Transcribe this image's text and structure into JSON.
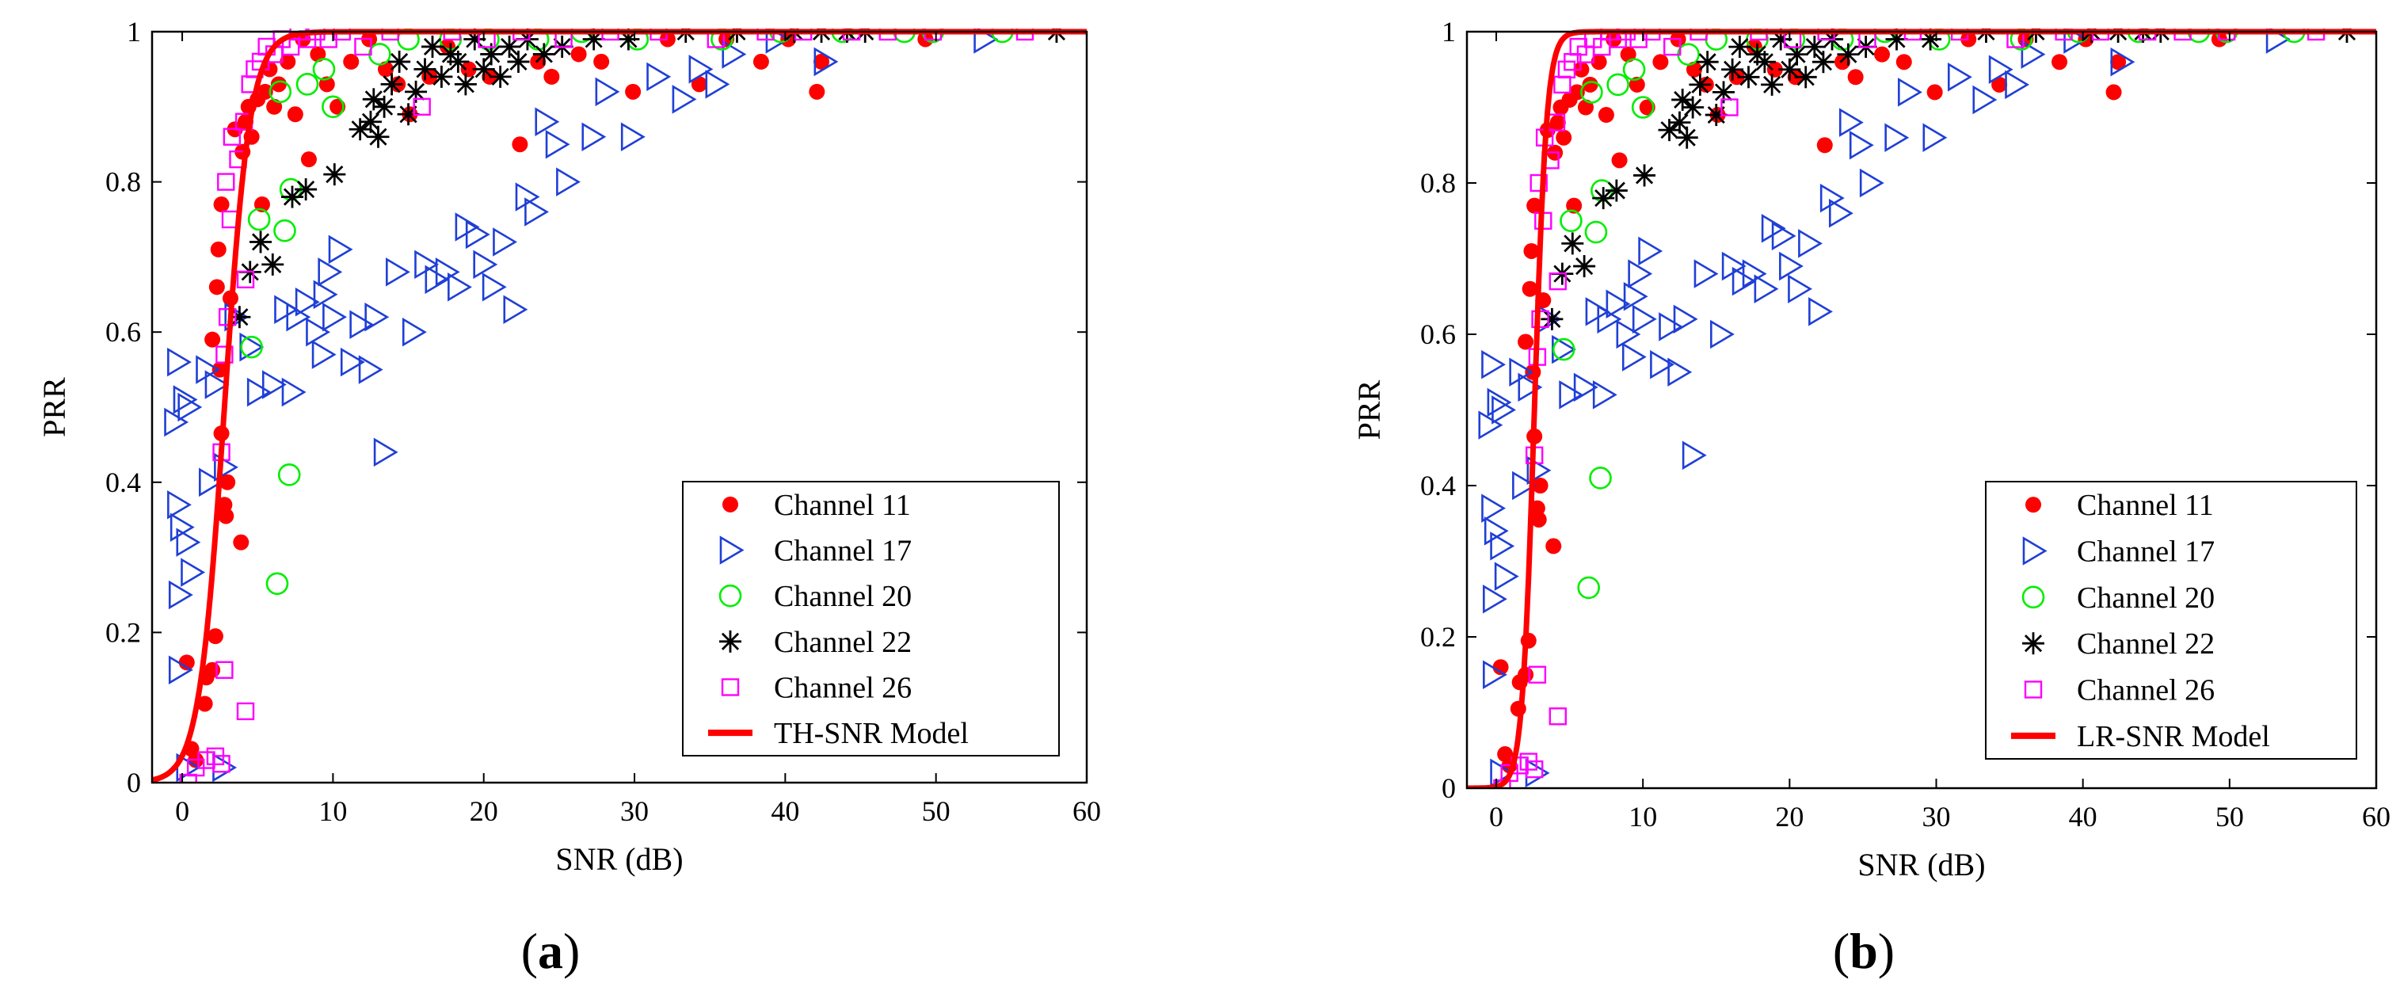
{
  "figure": {
    "panels": [
      {
        "open": "(",
        "letter": "a",
        "close": ")"
      },
      {
        "open": "(",
        "letter": "b",
        "close": ")"
      }
    ]
  },
  "chart_data": [
    {
      "type": "scatter",
      "panel": "a",
      "xlabel": "SNR (dB)",
      "ylabel": "PRR",
      "xlim": [
        -2,
        60
      ],
      "ylim": [
        0,
        1
      ],
      "xticks": [
        0,
        10,
        20,
        30,
        40,
        50,
        60
      ],
      "yticks": [
        0,
        0.2,
        0.4,
        0.6,
        0.8,
        1
      ],
      "ytick_labels": [
        "0",
        "0.2",
        "0.4",
        "0.6",
        "0.8",
        "1"
      ],
      "legend_position": "bottom-right",
      "legend": [
        "Channel 11",
        "Channel 17",
        "Channel 20",
        "Channel 22",
        "Channel 26",
        "TH-SNR Model"
      ],
      "model": {
        "name": "TH-SNR Model",
        "kind": "sigmoid",
        "center": 2.8,
        "scale": 0.85
      },
      "series": [
        {
          "name": "Channel 11",
          "marker": "dot",
          "color": "#ff0000",
          "points": [
            [
              0.3,
              0.16
            ],
            [
              0.6,
              0.045
            ],
            [
              0.9,
              0.03
            ],
            [
              1.5,
              0.105
            ],
            [
              1.6,
              0.14
            ],
            [
              2.0,
              0.15
            ],
            [
              2.2,
              0.195
            ],
            [
              2.0,
              0.59
            ],
            [
              2.3,
              0.66
            ],
            [
              2.4,
              0.71
            ],
            [
              2.6,
              0.77
            ],
            [
              2.5,
              0.55
            ],
            [
              2.6,
              0.465
            ],
            [
              2.8,
              0.37
            ],
            [
              2.9,
              0.355
            ],
            [
              3.0,
              0.4
            ],
            [
              3.2,
              0.645
            ],
            [
              3.5,
              0.87
            ],
            [
              3.9,
              0.32
            ],
            [
              4.0,
              0.84
            ],
            [
              4.2,
              0.88
            ],
            [
              4.4,
              0.9
            ],
            [
              4.6,
              0.86
            ],
            [
              5.0,
              0.91
            ],
            [
              5.3,
              0.77
            ],
            [
              5.5,
              0.92
            ],
            [
              5.8,
              0.95
            ],
            [
              6.1,
              0.9
            ],
            [
              6.4,
              0.93
            ],
            [
              7.0,
              0.96
            ],
            [
              7.5,
              0.89
            ],
            [
              8.0,
              0.99
            ],
            [
              8.4,
              0.83
            ],
            [
              9.0,
              0.97
            ],
            [
              9.6,
              0.93
            ],
            [
              10.3,
              0.9
            ],
            [
              11.2,
              0.96
            ],
            [
              12.4,
              0.99
            ],
            [
              13.5,
              0.95
            ],
            [
              14.3,
              0.93
            ],
            [
              15.1,
              0.89
            ],
            [
              16.4,
              0.94
            ],
            [
              17.6,
              0.98
            ],
            [
              19.0,
              0.95
            ],
            [
              20.4,
              0.94
            ],
            [
              22.4,
              0.85
            ],
            [
              23.6,
              0.96
            ],
            [
              24.5,
              0.94
            ],
            [
              26.3,
              0.97
            ],
            [
              27.8,
              0.96
            ],
            [
              29.9,
              0.92
            ],
            [
              32.2,
              0.99
            ],
            [
              34.3,
              0.93
            ],
            [
              36.1,
              0.99
            ],
            [
              38.4,
              0.96
            ],
            [
              40.2,
              0.99
            ],
            [
              42.1,
              0.92
            ],
            [
              42.4,
              0.96
            ],
            [
              49.3,
              0.99
            ]
          ]
        },
        {
          "name": "Channel 17",
          "marker": "triangle-right",
          "color": "#1f3fd6",
          "points": [
            [
              -0.3,
              0.56
            ],
            [
              -0.5,
              0.48
            ],
            [
              0.1,
              0.51
            ],
            [
              0.4,
              0.5
            ],
            [
              -0.2,
              0.25
            ],
            [
              0.3,
              0.32
            ],
            [
              -0.3,
              0.37
            ],
            [
              -0.1,
              0.34
            ],
            [
              0.6,
              0.28
            ],
            [
              -0.2,
              0.15
            ],
            [
              0.3,
              0.02
            ],
            [
              1.6,
              0.55
            ],
            [
              2.2,
              0.53
            ],
            [
              1.8,
              0.4
            ],
            [
              2.8,
              0.42
            ],
            [
              2.7,
              0.02
            ],
            [
              3.5,
              0.62
            ],
            [
              4.5,
              0.58
            ],
            [
              5.0,
              0.52
            ],
            [
              6.0,
              0.53
            ],
            [
              6.8,
              0.63
            ],
            [
              7.3,
              0.52
            ],
            [
              7.6,
              0.62
            ],
            [
              8.2,
              0.64
            ],
            [
              8.9,
              0.6
            ],
            [
              9.3,
              0.57
            ],
            [
              9.4,
              0.65
            ],
            [
              9.7,
              0.68
            ],
            [
              10.0,
              0.62
            ],
            [
              10.4,
              0.71
            ],
            [
              11.2,
              0.56
            ],
            [
              11.8,
              0.61
            ],
            [
              12.4,
              0.55
            ],
            [
              12.8,
              0.62
            ],
            [
              13.4,
              0.44
            ],
            [
              14.2,
              0.68
            ],
            [
              15.3,
              0.6
            ],
            [
              16.1,
              0.69
            ],
            [
              16.8,
              0.67
            ],
            [
              17.5,
              0.68
            ],
            [
              18.3,
              0.66
            ],
            [
              18.8,
              0.74
            ],
            [
              19.5,
              0.73
            ],
            [
              20.0,
              0.69
            ],
            [
              20.6,
              0.66
            ],
            [
              21.3,
              0.72
            ],
            [
              22.0,
              0.63
            ],
            [
              22.8,
              0.78
            ],
            [
              23.4,
              0.76
            ],
            [
              24.1,
              0.88
            ],
            [
              24.8,
              0.85
            ],
            [
              25.5,
              0.8
            ],
            [
              27.2,
              0.86
            ],
            [
              28.1,
              0.92
            ],
            [
              29.8,
              0.86
            ],
            [
              31.5,
              0.94
            ],
            [
              33.2,
              0.91
            ],
            [
              34.3,
              0.95
            ],
            [
              35.4,
              0.93
            ],
            [
              36.5,
              0.97
            ],
            [
              39.4,
              0.99
            ],
            [
              42.6,
              0.96
            ],
            [
              53.2,
              0.99
            ]
          ]
        },
        {
          "name": "Channel 20",
          "marker": "circle",
          "color": "#00ee00",
          "points": [
            [
              4.6,
              0.58
            ],
            [
              5.1,
              0.75
            ],
            [
              6.3,
              0.265
            ],
            [
              7.1,
              0.41
            ],
            [
              6.8,
              0.735
            ],
            [
              7.2,
              0.79
            ],
            [
              6.5,
              0.92
            ],
            [
              8.3,
              0.93
            ],
            [
              9.4,
              0.95
            ],
            [
              10.0,
              0.9
            ],
            [
              13.1,
              0.97
            ],
            [
              15.0,
              0.99
            ],
            [
              17.8,
              0.99
            ],
            [
              20.3,
              0.99
            ],
            [
              23.6,
              0.99
            ],
            [
              26.5,
              1.0
            ],
            [
              30.2,
              0.99
            ],
            [
              35.8,
              0.99
            ],
            [
              39.7,
              1.0
            ],
            [
              43.8,
              1.0
            ],
            [
              47.9,
              1.0
            ],
            [
              49.8,
              1.0
            ],
            [
              54.4,
              1.0
            ]
          ]
        },
        {
          "name": "Channel 22",
          "marker": "asterisk",
          "color": "#000000",
          "points": [
            [
              3.8,
              0.62
            ],
            [
              4.5,
              0.68
            ],
            [
              5.2,
              0.72
            ],
            [
              6.0,
              0.69
            ],
            [
              7.3,
              0.78
            ],
            [
              8.2,
              0.79
            ],
            [
              10.1,
              0.81
            ],
            [
              11.8,
              0.87
            ],
            [
              12.5,
              0.88
            ],
            [
              12.7,
              0.91
            ],
            [
              13.0,
              0.86
            ],
            [
              13.4,
              0.9
            ],
            [
              13.9,
              0.93
            ],
            [
              14.4,
              0.96
            ],
            [
              15.0,
              0.89
            ],
            [
              15.5,
              0.92
            ],
            [
              16.1,
              0.95
            ],
            [
              16.6,
              0.98
            ],
            [
              17.2,
              0.94
            ],
            [
              17.8,
              0.97
            ],
            [
              18.3,
              0.96
            ],
            [
              18.8,
              0.93
            ],
            [
              19.4,
              0.99
            ],
            [
              20.0,
              0.95
            ],
            [
              20.5,
              0.97
            ],
            [
              21.1,
              0.94
            ],
            [
              21.7,
              0.98
            ],
            [
              22.3,
              0.96
            ],
            [
              22.9,
              0.99
            ],
            [
              24.0,
              0.97
            ],
            [
              25.2,
              0.98
            ],
            [
              27.3,
              0.99
            ],
            [
              29.6,
              0.99
            ],
            [
              33.4,
              1.0
            ],
            [
              36.8,
              1.0
            ],
            [
              40.6,
              1.0
            ],
            [
              42.4,
              1.0
            ],
            [
              44.1,
              1.0
            ],
            [
              45.3,
              1.0
            ],
            [
              58.0,
              1.0
            ]
          ]
        },
        {
          "name": "Channel 26",
          "marker": "square",
          "color": "#ff00ff",
          "points": [
            [
              0.4,
              0.0
            ],
            [
              0.9,
              0.02
            ],
            [
              1.6,
              0.03
            ],
            [
              2.2,
              0.035
            ],
            [
              2.6,
              0.025
            ],
            [
              2.8,
              0.15
            ],
            [
              2.6,
              0.44
            ],
            [
              2.8,
              0.57
            ],
            [
              3.0,
              0.62
            ],
            [
              3.2,
              0.75
            ],
            [
              2.9,
              0.8
            ],
            [
              3.3,
              0.86
            ],
            [
              3.7,
              0.83
            ],
            [
              4.1,
              0.88
            ],
            [
              4.2,
              0.095
            ],
            [
              4.2,
              0.67
            ],
            [
              4.5,
              0.93
            ],
            [
              4.8,
              0.95
            ],
            [
              5.2,
              0.96
            ],
            [
              5.6,
              0.98
            ],
            [
              6.1,
              0.97
            ],
            [
              6.6,
              0.99
            ],
            [
              7.2,
              0.98
            ],
            [
              7.7,
              1.0
            ],
            [
              8.3,
              0.99
            ],
            [
              8.9,
              1.0
            ],
            [
              9.7,
              0.99
            ],
            [
              10.6,
              1.0
            ],
            [
              12.0,
              0.98
            ],
            [
              13.8,
              1.0
            ],
            [
              15.9,
              0.9
            ],
            [
              17.9,
              1.0
            ],
            [
              20.2,
              0.99
            ],
            [
              22.5,
              1.0
            ],
            [
              25.3,
              0.99
            ],
            [
              28.4,
              1.0
            ],
            [
              31.6,
              1.0
            ],
            [
              35.4,
              0.99
            ],
            [
              38.7,
              1.0
            ],
            [
              41.2,
              1.0
            ],
            [
              44.4,
              1.0
            ],
            [
              46.8,
              1.0
            ],
            [
              49.8,
              1.0
            ],
            [
              55.9,
              1.0
            ]
          ]
        }
      ]
    },
    {
      "type": "scatter",
      "panel": "b",
      "xlabel": "SNR (dB)",
      "ylabel": "PRR",
      "xlim": [
        -2,
        60
      ],
      "ylim": [
        0,
        1
      ],
      "xticks": [
        0,
        10,
        20,
        30,
        40,
        50,
        60
      ],
      "yticks": [
        0,
        0.2,
        0.4,
        0.6,
        0.8,
        1
      ],
      "ytick_labels": [
        "0",
        "0.2",
        "0.4",
        "0.6",
        "0.8",
        "1"
      ],
      "legend_position": "bottom-right",
      "legend": [
        "Channel 11",
        "Channel 17",
        "Channel 20",
        "Channel 22",
        "Channel 26",
        "LR-SNR Model"
      ],
      "model": {
        "name": "LR-SNR Model",
        "kind": "sigmoid",
        "center": 2.6,
        "scale": 0.42
      },
      "series_same_as_panel": "a"
    }
  ]
}
